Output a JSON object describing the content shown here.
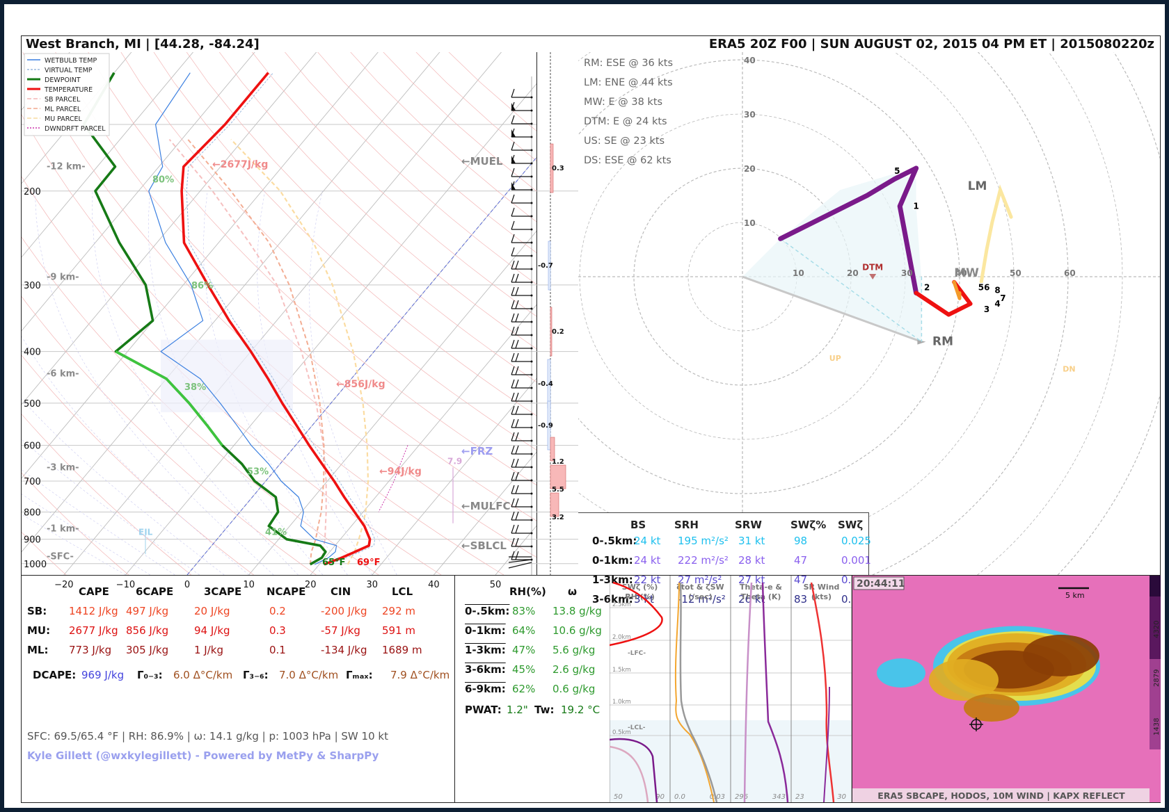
{
  "header": {
    "location": "West Branch, MI  |  [44.28, -84.24]",
    "run": "ERA5 20Z F00  |  SUN AUGUST 02, 2015  04 PM ET  |  2015080220z"
  },
  "skewt": {
    "legend": [
      {
        "label": "WETBULB TEMP",
        "color": "#3a7fe0",
        "dash": ""
      },
      {
        "label": "VIRTUAL TEMP",
        "color": "#9bb8dd",
        "dash": "3,2"
      },
      {
        "label": "DEWPOINT",
        "color": "#167a16",
        "dash": ""
      },
      {
        "label": "TEMPERATURE",
        "color": "#ee1111",
        "dash": ""
      },
      {
        "label": "SB PARCEL",
        "color": "#f4b5b5",
        "dash": "6,3"
      },
      {
        "label": "ML PARCEL",
        "color": "#f2a98e",
        "dash": "6,3"
      },
      {
        "label": "MU PARCEL",
        "color": "#f8dca0",
        "dash": "6,3"
      },
      {
        "label": "DWNDRFT PARCEL",
        "color": "#cc33aa",
        "dash": "2,2"
      }
    ],
    "pressure_ticks": [
      "200",
      "300",
      "400",
      "500",
      "600",
      "700",
      "800",
      "900",
      "1000"
    ],
    "temp_ticks": [
      "−20",
      "−10",
      "0",
      "10",
      "20",
      "30",
      "40",
      "50"
    ],
    "height_labels": [
      "-12 km-",
      "-9 km-",
      "-6 km-",
      "-3 km-",
      "-1 km-",
      "-SFC-"
    ],
    "rh_labels": [
      "80%",
      "86%",
      "38%",
      "53%",
      "41%"
    ],
    "cape_labels": [
      "←2677J/kg",
      "←856J/kg",
      "←94J/kg"
    ],
    "level_labels": [
      "←MUEL",
      "←FRZ",
      "←MULFC",
      "←SBLCL"
    ],
    "sfc_temp": "69°F",
    "sfc_dew": "65°F",
    "eil": "EIL",
    "lapse_max": "7.9",
    "shear_values": [
      "0.3",
      "-0.7",
      "0.2",
      "-0.4",
      "-0.9",
      "1.2",
      "5.5",
      "3.2"
    ]
  },
  "chart_data": {
    "type": "line",
    "title": "",
    "temperature": {
      "p": [
        1003,
        975,
        950,
        925,
        900,
        850,
        800,
        750,
        700,
        650,
        600,
        550,
        500,
        450,
        400,
        350,
        300,
        250,
        200,
        180,
        150,
        120
      ],
      "t": [
        20.8,
        22.7,
        24.1,
        25.5,
        24.8,
        22.1,
        18.6,
        14.9,
        11.1,
        6.8,
        2.2,
        -2.6,
        -7.9,
        -13.5,
        -20.0,
        -27.7,
        -36.0,
        -45.6,
        -53.0,
        -56.0,
        -55.0,
        -55.0
      ]
    },
    "dewpoint": {
      "p": [
        1003,
        975,
        950,
        925,
        900,
        850,
        800,
        750,
        700,
        650,
        600,
        550,
        500,
        450,
        400,
        350,
        300,
        250,
        200,
        180,
        150,
        120
      ],
      "t": [
        18.5,
        19.5,
        19.3,
        17.6,
        11.3,
        6.6,
        6.2,
        3.8,
        -1.8,
        -6.2,
        -11.9,
        -17.1,
        -23.0,
        -30.0,
        -41.9,
        -40.1,
        -46.1,
        -56.1,
        -67.0,
        -67.1,
        -77.9,
        -80.0
      ]
    },
    "hodograph": {
      "u": [
        7,
        23,
        28,
        32,
        29,
        32,
        38,
        42,
        39,
        40,
        40,
        40,
        45,
        46,
        49
      ],
      "v": [
        7,
        15,
        18,
        20,
        13,
        -3,
        -7,
        -5,
        -1,
        -4,
        -4,
        -3,
        -5,
        -4,
        1
      ]
    },
    "hodograph_labels": [
      "5",
      "1",
      "2",
      "3",
      "56",
      "8",
      "7",
      "4"
    ],
    "radar_colorbar_ticks": [
      "4320",
      "2879",
      "1438"
    ],
    "inset_ticks": [
      "2.5km",
      "2.0km",
      "1.5km",
      "1.0km",
      "0.5km"
    ]
  },
  "hodo": {
    "storm_motion": [
      "RM: ESE @ 36 kts",
      "LM: ENE @ 44 kts",
      "MW: E @ 38 kts",
      "DTM: E @ 24 kts",
      "US: SE @ 23 kts",
      "DS: ESE @ 62 kts"
    ],
    "ring_labels": [
      "10",
      "20",
      "30",
      "40",
      "50",
      "60"
    ],
    "ring_labels_v": [
      "10",
      "20",
      "30",
      "40"
    ],
    "markers": {
      "RM": "RM",
      "LM": "LM",
      "MW": "MW",
      "DTM": "DTM",
      "UP": "UP",
      "DN": "DN"
    }
  },
  "kin_table": {
    "headers": [
      "BS",
      "SRH",
      "SRW",
      "SWζ%",
      "SWζ"
    ],
    "rows": [
      {
        "label": "0-.5km:",
        "bs": "24 kt",
        "srh": "195 m²/s²",
        "srw": "31 kt",
        "swp": "98",
        "sw": "0.025",
        "color": "#1ec0ee"
      },
      {
        "label": "0-1km:",
        "bs": "24 kt",
        "srh": "222 m²/s²",
        "srw": "28 kt",
        "swp": "47",
        "sw": "0.001",
        "color": "#8a60ee"
      },
      {
        "label": "1-3km:",
        "bs": "22 kt",
        "srh": "27 m²/s²",
        "srw": "27 kt",
        "swp": "47",
        "sw": "0.003",
        "color": "#5a4ad0"
      },
      {
        "label": "3-6km:",
        "bs": "3 kt",
        "srh": "-12 m²/s²",
        "srw": "26 kt",
        "swp": "83",
        "sw": "0.001",
        "color": "#2f2f8a"
      }
    ]
  },
  "thermo": {
    "headers": [
      "CAPE",
      "6CAPE",
      "3CAPE",
      "NCAPE",
      "CIN",
      "LCL"
    ],
    "rows": [
      {
        "label": "SB:",
        "vals": [
          "1412 J/kg",
          "497 J/kg",
          "20 J/kg",
          "0.2",
          "-200 J/kg",
          "292 m"
        ],
        "color": "#ee4422"
      },
      {
        "label": "MU:",
        "vals": [
          "2677 J/kg",
          "856 J/kg",
          "94 J/kg",
          "0.3",
          "-57 J/kg",
          "591 m"
        ],
        "color": "#dd1111"
      },
      {
        "label": "ML:",
        "vals": [
          "773 J/kg",
          "305 J/kg",
          "1 J/kg",
          "0.1",
          "-134 J/kg",
          "1689 m"
        ],
        "color": "#991111"
      }
    ],
    "dcape_label": "DCAPE:",
    "dcape": "969 J/kg",
    "g03_label": "Γ₀₋₃:",
    "g03": "6.0 Δ°C/km",
    "g36_label": "Γ₃₋₆:",
    "g36": "7.0 Δ°C/km",
    "gmax_label": "Γₘₐₓ:",
    "gmax": "7.9 Δ°C/km",
    "sfc": "SFC: 69.5/65.4 °F | RH: 86.9% | ω: 14.1 g/kg | p: 1003 hPa | SW 10 kt",
    "credit": "Kyle Gillett (@wxkylegillett) - Powered by MetPy & SharpPy"
  },
  "moisture": {
    "headers": [
      "RH(%)",
      "ω"
    ],
    "rows": [
      {
        "label": "0-.5km:",
        "rh": "83%",
        "w": "13.8 g/kg"
      },
      {
        "label": "0-1km:",
        "rh": "64%",
        "w": "10.6 g/kg"
      },
      {
        "label": "1-3km:",
        "rh": "47%",
        "w": "5.6 g/kg"
      },
      {
        "label": "3-6km:",
        "rh": "45%",
        "w": "2.6 g/kg"
      },
      {
        "label": "6-9km:",
        "rh": "62%",
        "w": "0.6 g/kg"
      }
    ],
    "pwat_label": "PWAT:",
    "pwat": "1.2\"",
    "tw_label": "Tw:",
    "tw": "19.2 °C"
  },
  "insets": {
    "titles": [
      "SWζ (%)\nRH (%)",
      "ζtot & ζSW\n(/sec)",
      "Theta-e &\nTheta (K)",
      "SR Wind\n(kts)"
    ],
    "ticks": [
      [
        "50",
        "90"
      ],
      [
        "0.0",
        "0.03"
      ],
      [
        "296",
        "343"
      ],
      [
        "23",
        "30"
      ]
    ],
    "lfc": "-LFC-",
    "lcl": "-LCL-"
  },
  "radar": {
    "time": "20:44:11",
    "scale": "5 km",
    "caption": "ERA5 SBCAPE, HODOS, 10M WIND | KAPX REFLECT"
  }
}
